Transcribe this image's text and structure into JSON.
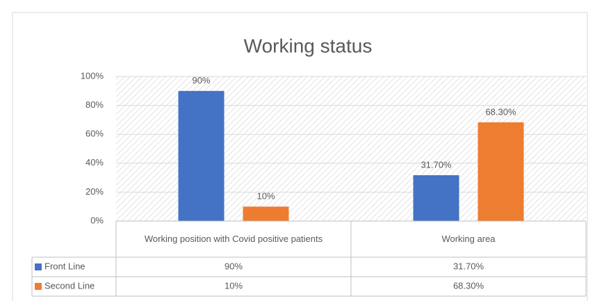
{
  "chart_data": {
    "type": "bar",
    "title": "Working status",
    "categories": [
      "Working position with Covid positive patients",
      "Working area"
    ],
    "series": [
      {
        "name": "Front Line",
        "color": "#4472c4",
        "values": [
          90,
          31.7
        ],
        "value_labels": [
          "90%",
          "31.70%"
        ]
      },
      {
        "name": "Second Line",
        "color": "#ed7d31",
        "values": [
          10,
          68.3
        ],
        "value_labels": [
          "10%",
          "68.30%"
        ]
      }
    ],
    "ylim": [
      0,
      100
    ],
    "yticks": [
      {
        "value": 0,
        "label": "0%"
      },
      {
        "value": 20,
        "label": "20%"
      },
      {
        "value": 40,
        "label": "40%"
      },
      {
        "value": 60,
        "label": "60%"
      },
      {
        "value": 80,
        "label": "80%"
      },
      {
        "value": 100,
        "label": "100%"
      }
    ],
    "grid": true
  }
}
